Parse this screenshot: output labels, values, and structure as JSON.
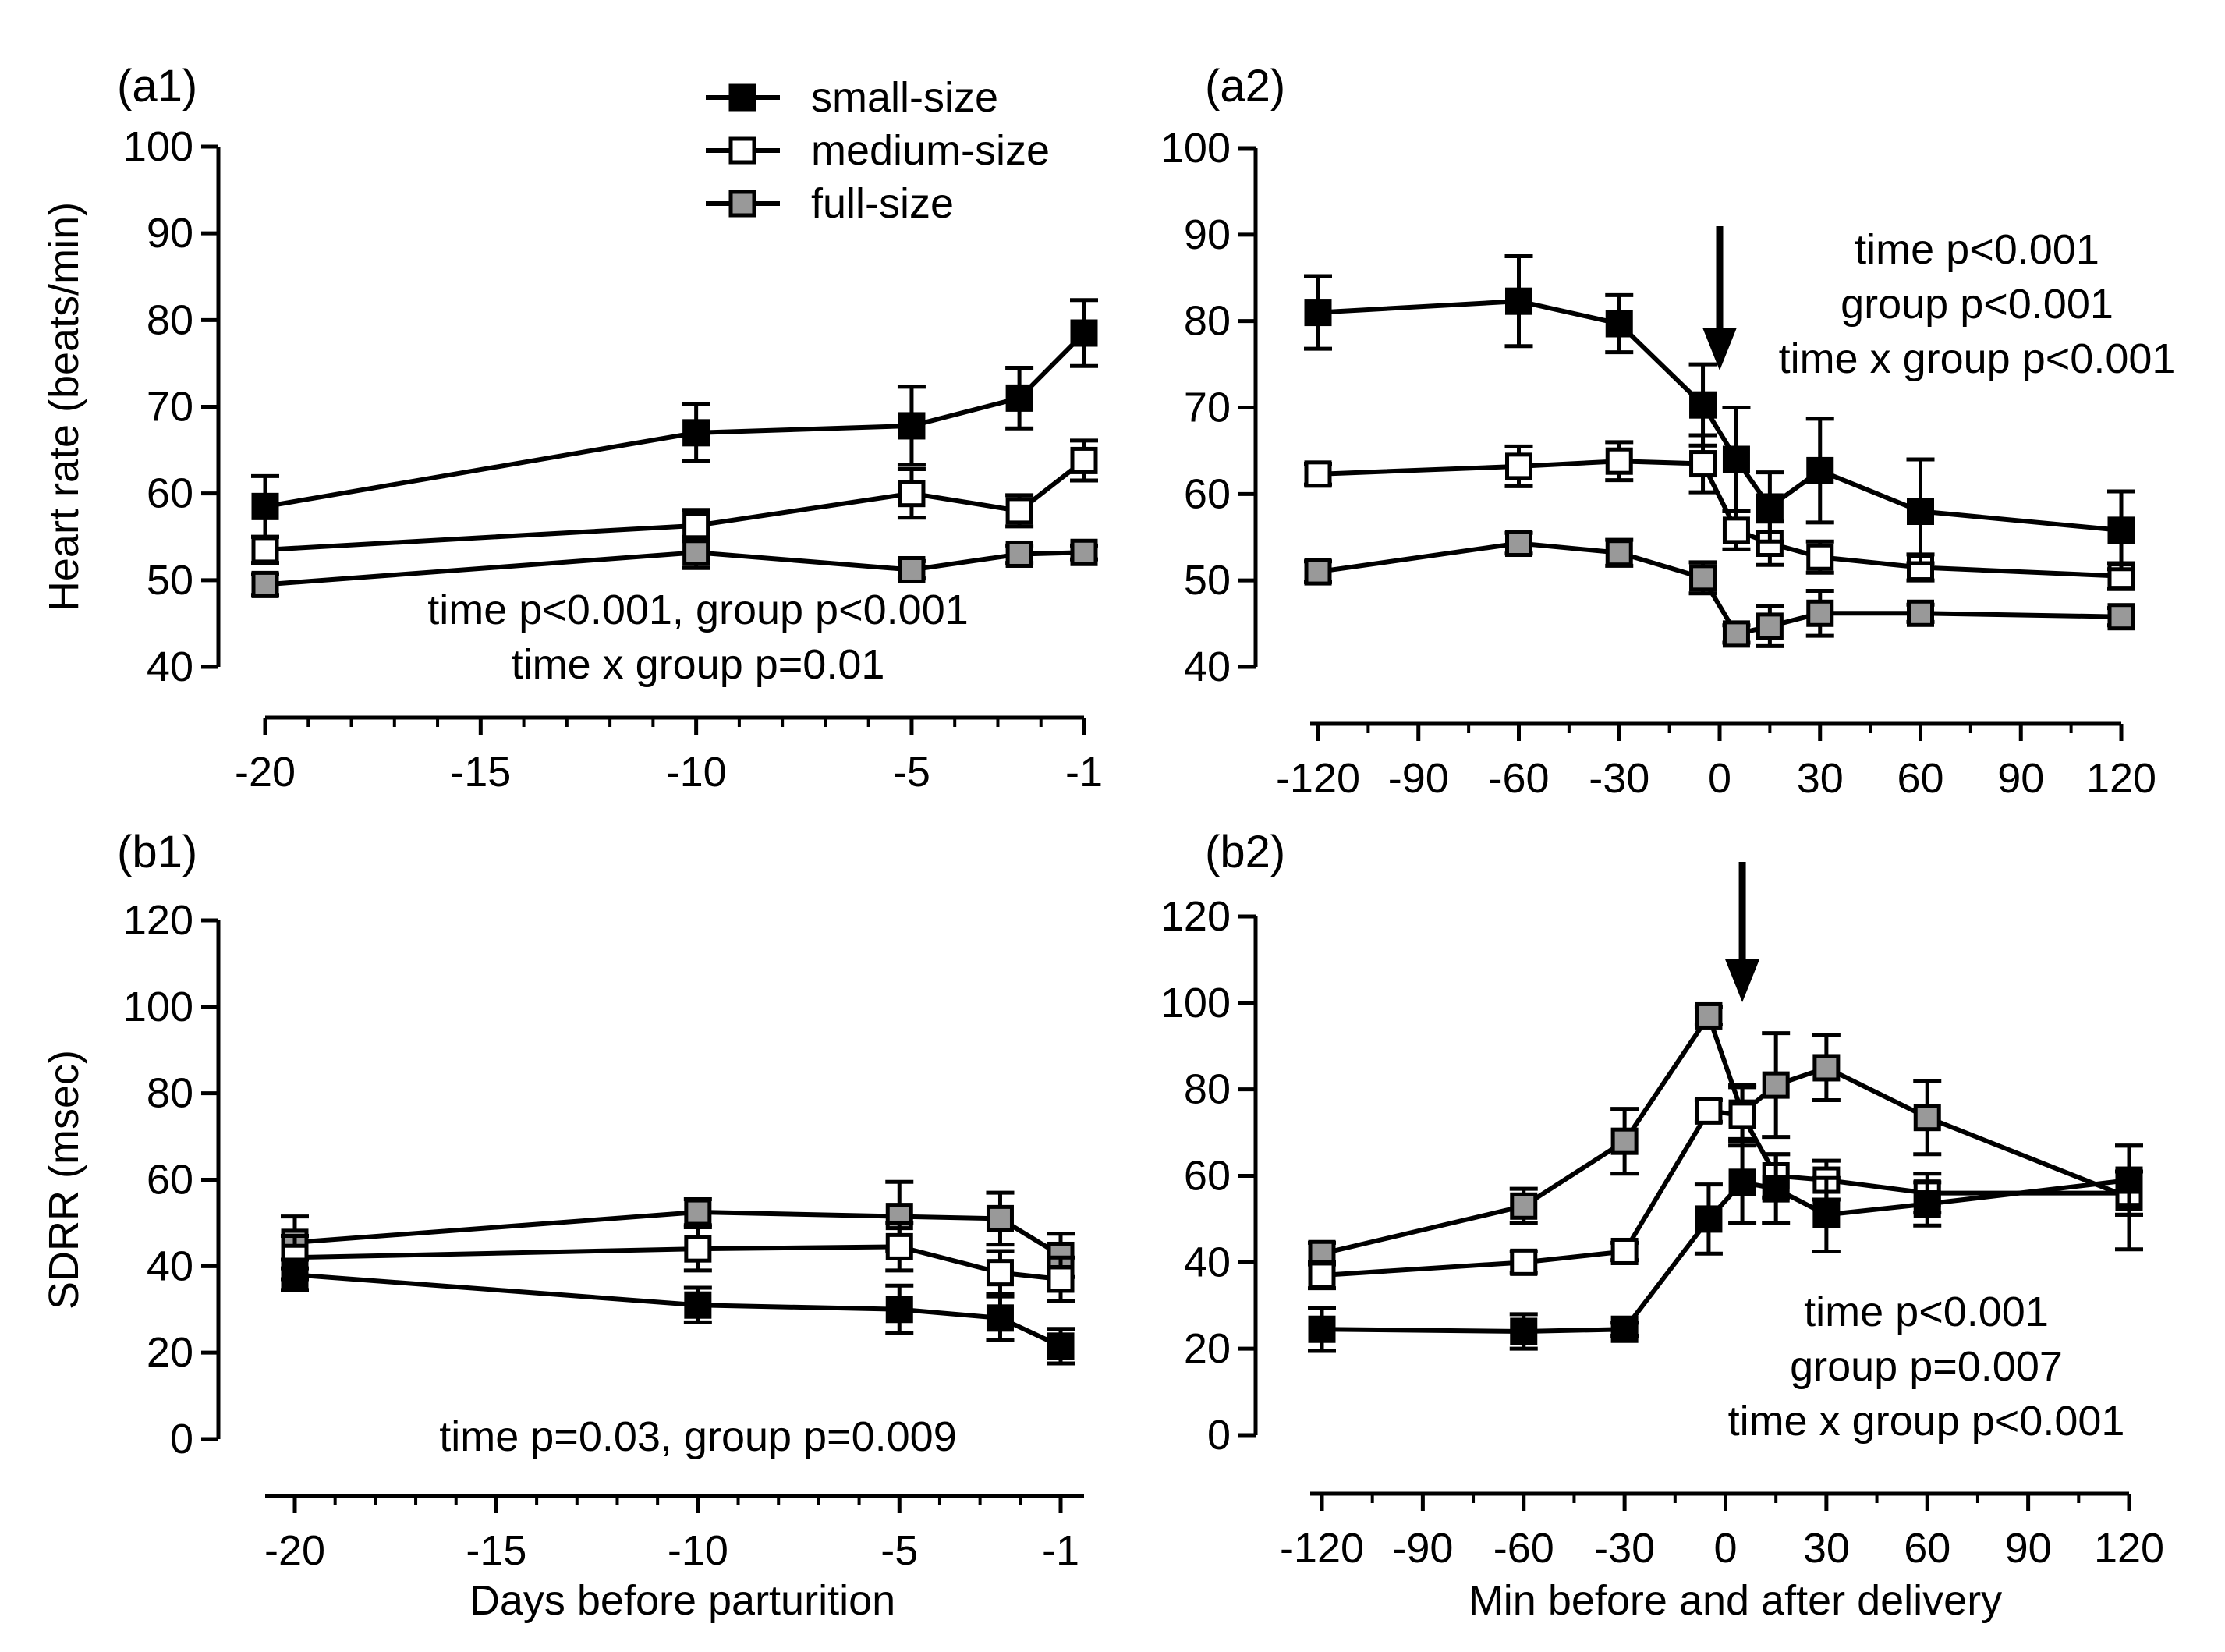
{
  "figure": {
    "xlabel_days": "Days before parturition",
    "xlabel_min": "Min before and after delivery",
    "legend": [
      {
        "name": "small-size",
        "fill": "#000000"
      },
      {
        "name": "medium-size",
        "fill": "#ffffff"
      },
      {
        "name": "full-size",
        "fill": "#999999"
      }
    ]
  },
  "chart_data": [
    {
      "id": "a1",
      "type": "line",
      "panel_label": "(a1)",
      "ylabel": "Heart rate (beats/min)",
      "xlabel": "",
      "xlim": [
        -20,
        -1
      ],
      "ylim": [
        40,
        100
      ],
      "xticks": [
        -20,
        -15,
        -10,
        -5,
        -1
      ],
      "yticks": [
        40,
        50,
        60,
        70,
        80,
        90,
        100
      ],
      "x": [
        -20,
        -10,
        -5,
        -2.5,
        -1
      ],
      "stats": [
        "time p<0.001, group p<0.001",
        "time x group p=0.01"
      ],
      "series": [
        {
          "name": "small-size",
          "values": [
            58.5,
            67,
            67.8,
            71,
            78.5
          ],
          "errors": [
            3.5,
            3.3,
            4.5,
            3.5,
            3.8
          ]
        },
        {
          "name": "medium-size",
          "values": [
            53.5,
            56.3,
            60,
            58,
            63.8
          ],
          "errors": [
            1.5,
            1.8,
            2.8,
            1.8,
            2.3
          ]
        },
        {
          "name": "full-size",
          "values": [
            49.5,
            53.2,
            51.2,
            53,
            53.2
          ],
          "errors": [
            1.2,
            1.8,
            1.0,
            1.0,
            0.8
          ]
        }
      ]
    },
    {
      "id": "a2",
      "type": "line",
      "panel_label": "(a2)",
      "ylabel": "",
      "xlabel": "",
      "xlim": [
        -120,
        120
      ],
      "ylim": [
        40,
        100
      ],
      "xticks": [
        -120,
        -90,
        -60,
        -30,
        0,
        30,
        60,
        90,
        120
      ],
      "yticks": [
        40,
        50,
        60,
        70,
        80,
        90,
        100
      ],
      "x": [
        -120,
        -60,
        -30,
        -5,
        5,
        15,
        30,
        60,
        120
      ],
      "arrow_at": 0,
      "stats": [
        "time p<0.001",
        "group p<0.001",
        "time x group p<0.001"
      ],
      "series": [
        {
          "name": "small-size",
          "values": [
            81,
            82.3,
            79.7,
            70.3,
            64,
            58.5,
            62.7,
            58,
            55.8
          ],
          "errors": [
            4.2,
            5.2,
            3.3,
            4.7,
            6,
            4,
            6,
            6,
            4.5
          ]
        },
        {
          "name": "medium-size",
          "values": [
            62.3,
            63.2,
            63.8,
            63.5,
            55.8,
            54.3,
            52.7,
            51.5,
            50.5
          ],
          "errors": [
            1.2,
            2.3,
            2.2,
            3.3,
            2.2,
            2.5,
            1.8,
            1.5,
            1.5
          ]
        },
        {
          "name": "full-size",
          "values": [
            51,
            54.3,
            53.2,
            50.3,
            43.8,
            44.7,
            46.2,
            46.2,
            45.8
          ],
          "errors": [
            1.2,
            1.2,
            1.5,
            1.8,
            1.0,
            2.3,
            2.6,
            1.0,
            1.0
          ]
        }
      ]
    },
    {
      "id": "b1",
      "type": "line",
      "panel_label": "(b1)",
      "ylabel": "SDRR (msec)",
      "xlabel": "Days before parturition",
      "xlim": [
        -20,
        -1
      ],
      "ylim": [
        0,
        120
      ],
      "xticks": [
        -20,
        -15,
        -10,
        -5,
        -1
      ],
      "yticks": [
        0,
        20,
        40,
        60,
        80,
        100,
        120
      ],
      "x": [
        -20,
        -10,
        -5,
        -2.5,
        -1
      ],
      "stats": [
        "time p=0.03, group p=0.009"
      ],
      "series": [
        {
          "name": "small-size",
          "values": [
            38,
            31,
            30,
            28,
            21.5
          ],
          "errors": [
            3.5,
            4,
            5.5,
            5,
            4
          ]
        },
        {
          "name": "medium-size",
          "values": [
            42,
            44,
            44.5,
            38.5,
            37
          ],
          "errors": [
            5,
            5,
            5.5,
            5,
            5
          ]
        },
        {
          "name": "full-size",
          "values": [
            45.5,
            52.5,
            51.5,
            51,
            42.5
          ],
          "errors": [
            6,
            3,
            8,
            6,
            5
          ]
        }
      ]
    },
    {
      "id": "b2",
      "type": "line",
      "panel_label": "(b2)",
      "ylabel": "",
      "xlabel": "Min before and after delivery",
      "xlim": [
        -120,
        120
      ],
      "ylim": [
        0,
        120
      ],
      "xticks": [
        -120,
        -90,
        -60,
        -30,
        0,
        30,
        60,
        90,
        120
      ],
      "yticks": [
        0,
        20,
        40,
        60,
        80,
        100,
        120
      ],
      "x": [
        -120,
        -60,
        -30,
        -5,
        5,
        15,
        30,
        60,
        120
      ],
      "arrow_at": 5,
      "stats": [
        "time p<0.001",
        "group p=0.007",
        "time x group p<0.001"
      ],
      "series": [
        {
          "name": "small-size",
          "values": [
            24.5,
            24,
            24.5,
            50,
            58.5,
            57,
            51,
            53.5,
            59
          ],
          "errors": [
            5,
            4,
            1.5,
            8,
            9.5,
            8,
            8.5,
            5,
            8
          ]
        },
        {
          "name": "medium-size",
          "values": [
            37,
            40,
            42.5,
            75,
            74,
            60,
            59,
            56,
            56
          ],
          "errors": [
            3,
            2.5,
            2,
            2.5,
            7,
            5,
            4.5,
            4.5,
            5
          ]
        },
        {
          "name": "full-size",
          "values": [
            42,
            53,
            68,
            97,
            74.5,
            81,
            85,
            73.5,
            55
          ],
          "errors": [
            2.5,
            4,
            7.5,
            2,
            6,
            12,
            7.5,
            8.5,
            12
          ]
        }
      ]
    }
  ]
}
